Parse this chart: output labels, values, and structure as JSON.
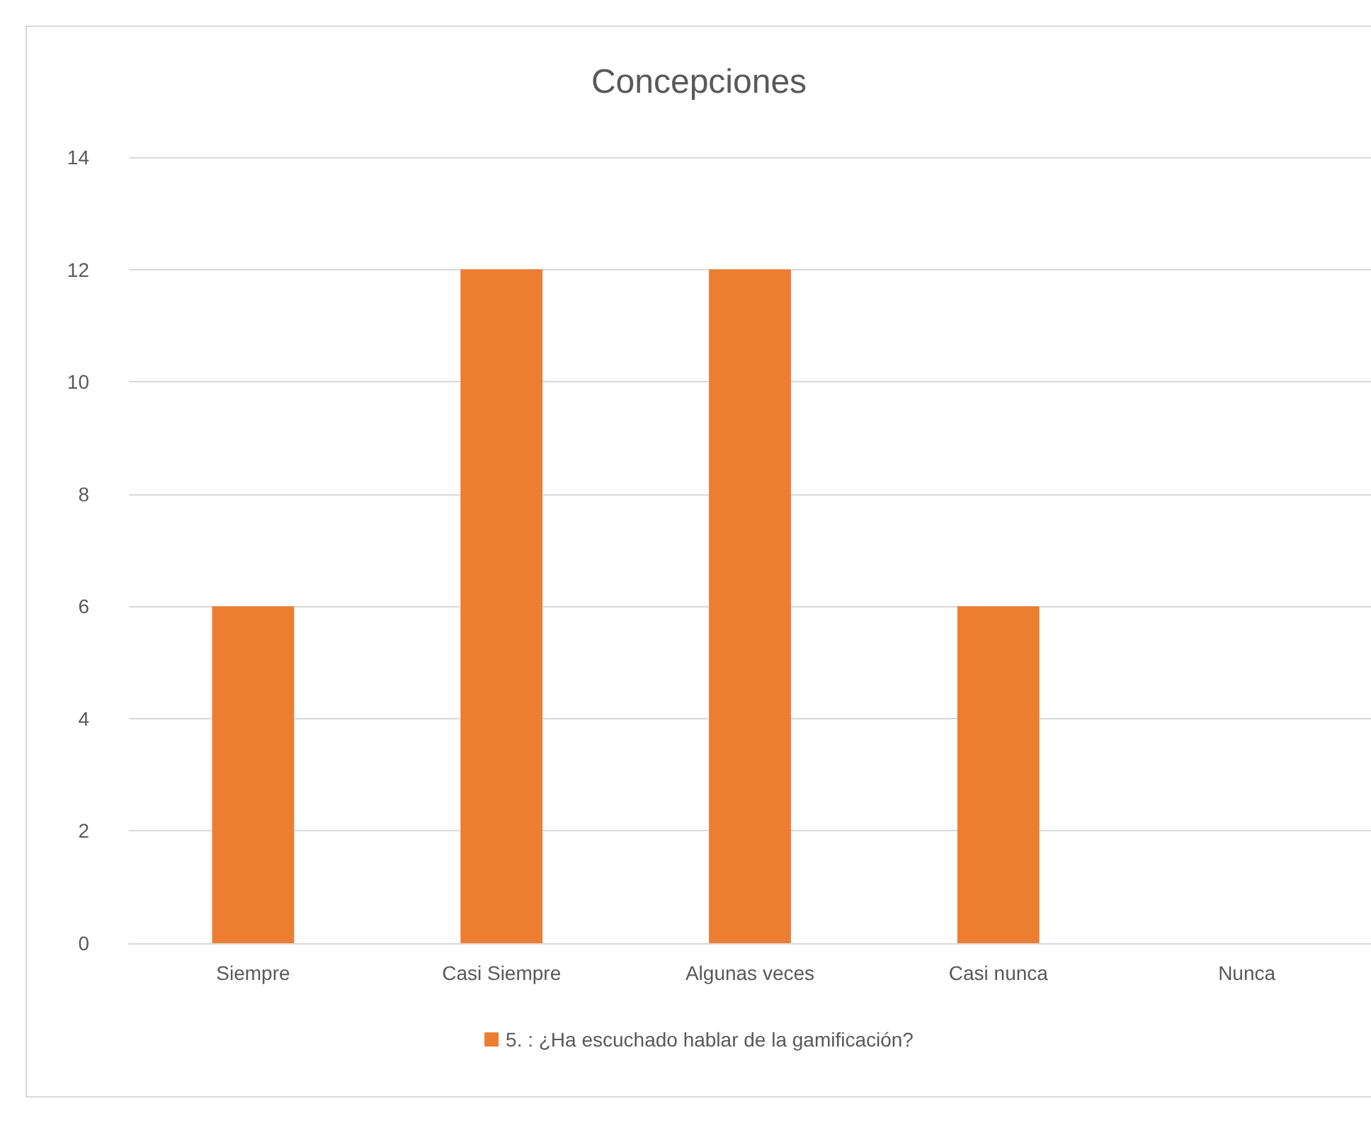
{
  "chart_data": {
    "type": "bar",
    "title": "Concepciones",
    "categories": [
      "Siempre",
      "Casi Siempre",
      "Algunas veces",
      "Casi nunca",
      "Nunca"
    ],
    "series": [
      {
        "name": "5. : ¿Ha escuchado hablar de la gamificación?",
        "color": "#ed7d31",
        "values": [
          6,
          12,
          12,
          6,
          0
        ]
      }
    ],
    "ylim": [
      0,
      14
    ],
    "yticks": [
      0,
      2,
      4,
      6,
      8,
      10,
      12,
      14
    ],
    "grid": "y",
    "legend": "bottom"
  }
}
